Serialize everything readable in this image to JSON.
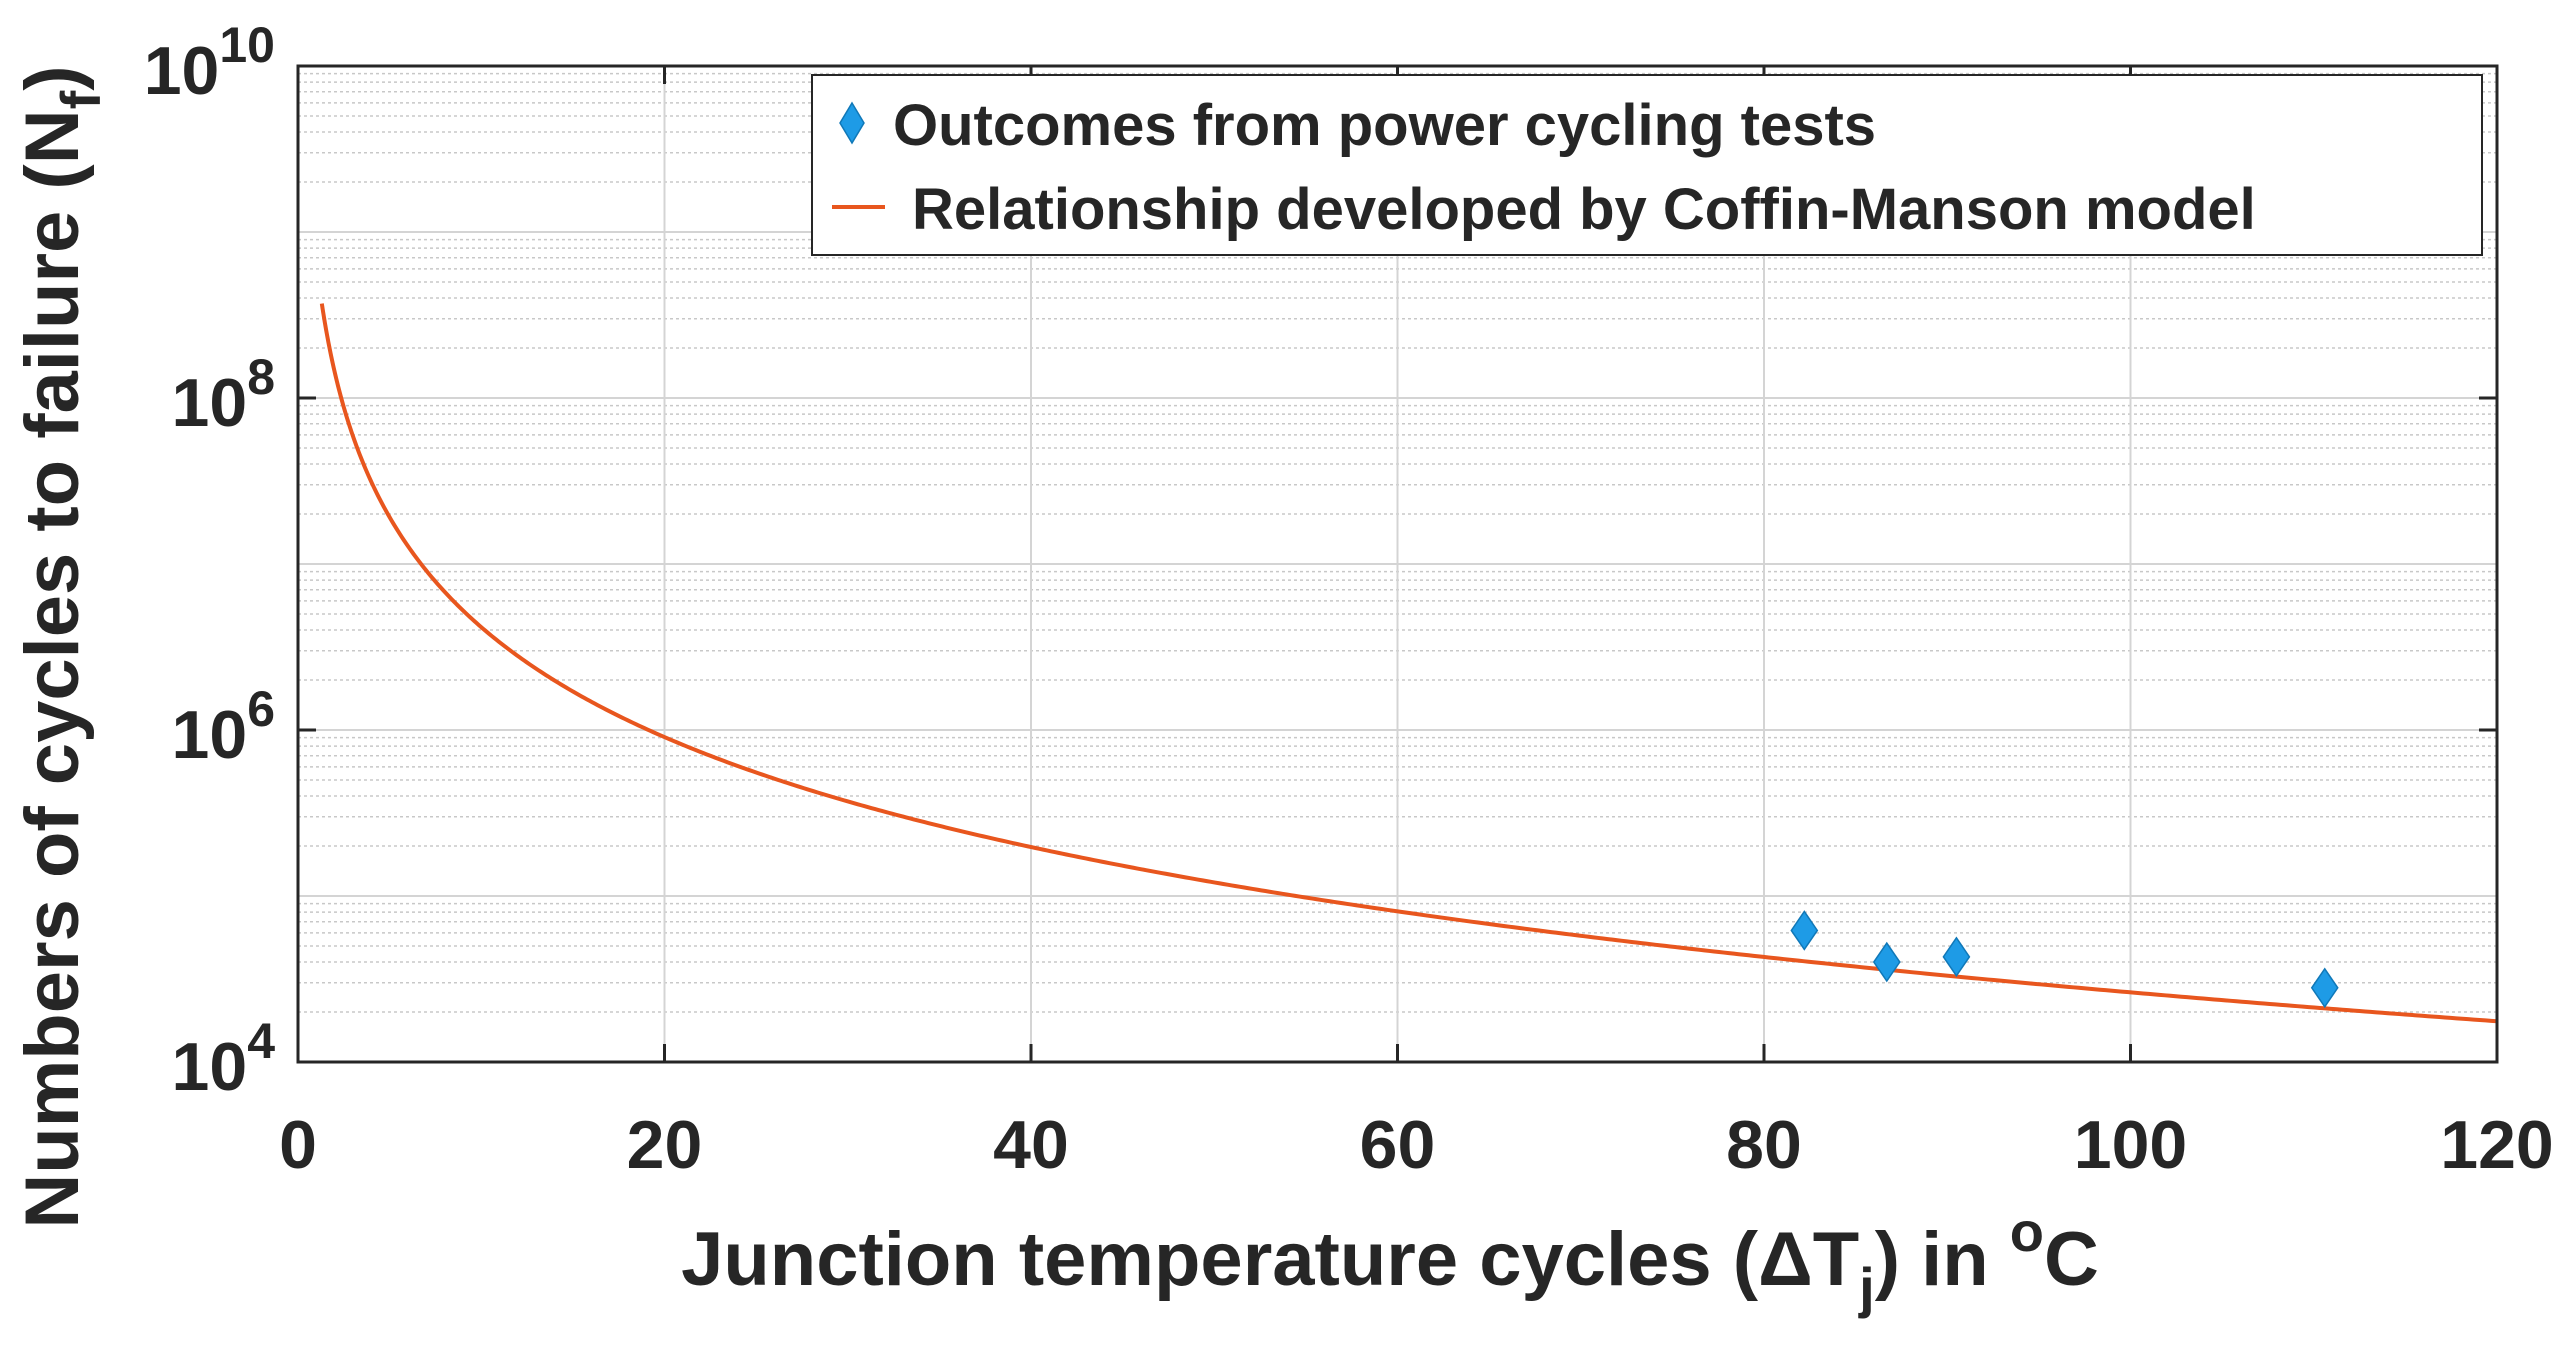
{
  "chart_data": {
    "type": "scatter",
    "xlabel": {
      "main": "Junction temperature cycles (ΔT",
      "sub": "j",
      "mid": ") in ",
      "sup": "o",
      "end": "C"
    },
    "ylabel": {
      "main": "Numbers of cycles to failure (N",
      "sub": "f",
      "end": ")"
    },
    "xlim": [
      0,
      120
    ],
    "ylim": [
      10000,
      10000000000
    ],
    "yscale": "log",
    "grid": true,
    "minor_grid_y": true,
    "legend_position": "top-right",
    "x_ticks": [
      "0",
      "20",
      "40",
      "60",
      "80",
      "100",
      "120"
    ],
    "y_ticks": [
      {
        "base": "10",
        "exp": "4",
        "value": 10000
      },
      {
        "base": "10",
        "exp": "6",
        "value": 1000000
      },
      {
        "base": "10",
        "exp": "8",
        "value": 100000000
      },
      {
        "base": "10",
        "exp": "10",
        "value": 10000000000
      }
    ],
    "series": [
      {
        "name": "Outcomes from power cycling tests",
        "kind": "scatter",
        "marker": "diamond",
        "color": "#1E9BE6",
        "points": [
          {
            "x": 82.2,
            "y": 62000
          },
          {
            "x": 86.7,
            "y": 40000
          },
          {
            "x": 90.5,
            "y": 43000
          },
          {
            "x": 110.6,
            "y": 28000
          }
        ]
      },
      {
        "name": "Relationship developed by Coffin-Manson model",
        "kind": "line",
        "color": "#E8561E",
        "model": {
          "a": 660000000,
          "n": 2.2,
          "x_start": 1.3,
          "x_end": 120
        }
      }
    ]
  }
}
